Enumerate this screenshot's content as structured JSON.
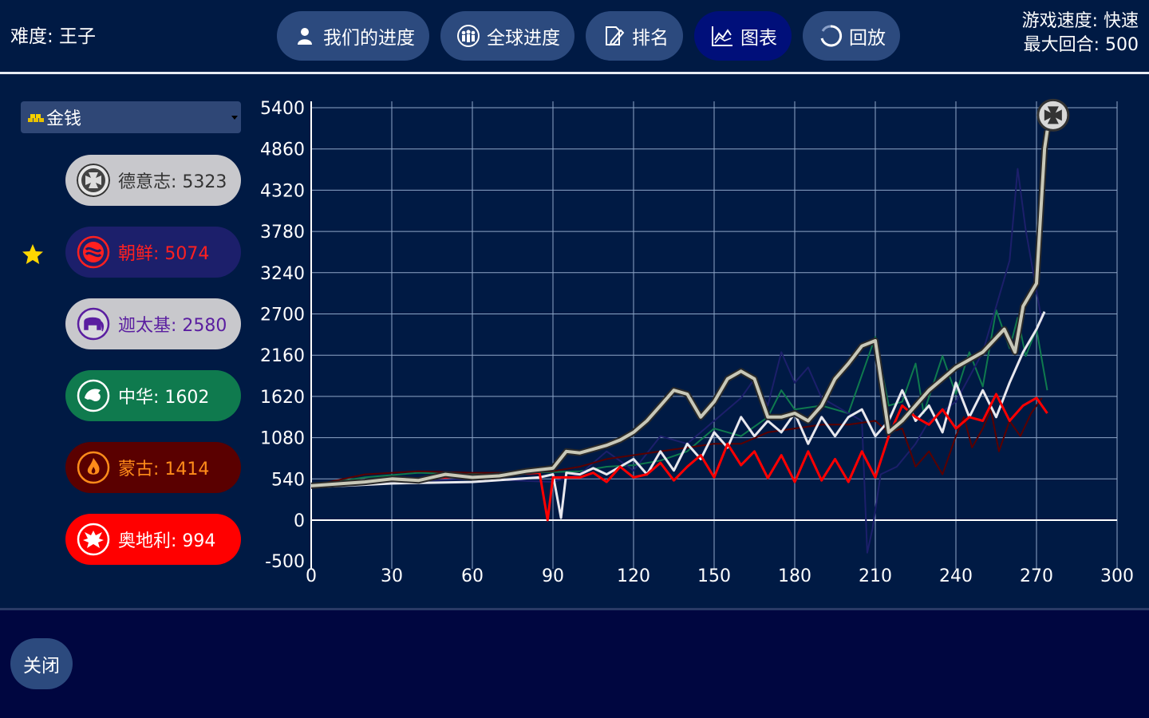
{
  "header": {
    "difficulty": "难度: 王子",
    "tabs": [
      {
        "label": "我们的进度",
        "icon": "person-icon"
      },
      {
        "label": "全球进度",
        "icon": "people-group-icon"
      },
      {
        "label": "排名",
        "icon": "edit-icon"
      },
      {
        "label": "图表",
        "icon": "chart-icon",
        "active": true
      },
      {
        "label": "回放",
        "icon": "replay-icon"
      }
    ],
    "game_speed": "游戏速度: 快速",
    "max_turns": "最大回合: 500"
  },
  "sidebar": {
    "stat_select": {
      "value": "金钱",
      "icon": "gold-icon"
    },
    "players": [
      {
        "label": "德意志: 5323",
        "bg": "#c8c8cc",
        "fg": "#333333",
        "emblem_bg": "#555555",
        "icon": "iron-cross-icon",
        "leader": true
      },
      {
        "label": "朝鲜: 5074",
        "bg": "#1c1f6b",
        "fg": "#ff2020",
        "emblem_bg": "#1c1f6b",
        "icon": "korea-emblem-icon"
      },
      {
        "label": "迦太基: 2580",
        "bg": "#c8c8cc",
        "fg": "#5a1ea0",
        "emblem_bg": "#d0d0d4",
        "icon": "elephant-icon"
      },
      {
        "label": "中华: 1602",
        "bg": "#0f7a4e",
        "fg": "#ffffff",
        "emblem_bg": "#0f7a4e",
        "icon": "dragon-icon"
      },
      {
        "label": "蒙古: 1414",
        "bg": "#5a0000",
        "fg": "#ff8c1a",
        "emblem_bg": "#5a0000",
        "icon": "flame-icon"
      },
      {
        "label": "奥地利: 994",
        "bg": "#ff0000",
        "fg": "#ffffff",
        "emblem_bg": "#ff0000",
        "icon": "eagle-icon"
      }
    ]
  },
  "chart_data": {
    "type": "line",
    "title": "",
    "xlabel": "",
    "ylabel": "",
    "xlim": [
      0,
      300
    ],
    "ylim": [
      -500,
      5400
    ],
    "xticks": [
      0,
      30,
      60,
      90,
      120,
      150,
      180,
      210,
      240,
      270,
      300
    ],
    "yticks": [
      5400,
      4860,
      4320,
      3780,
      3240,
      2700,
      2160,
      1620,
      1080,
      540,
      0,
      -500
    ],
    "grid": true,
    "series": [
      {
        "color": "#0f7a4e",
        "width": 2,
        "points": [
          [
            0,
            450
          ],
          [
            20,
            560
          ],
          [
            40,
            620
          ],
          [
            60,
            600
          ],
          [
            80,
            620
          ],
          [
            100,
            640
          ],
          [
            110,
            700
          ],
          [
            120,
            720
          ],
          [
            130,
            780
          ],
          [
            140,
            900
          ],
          [
            150,
            1200
          ],
          [
            160,
            1100
          ],
          [
            170,
            1350
          ],
          [
            175,
            1700
          ],
          [
            180,
            1450
          ],
          [
            190,
            1500
          ],
          [
            200,
            1400
          ],
          [
            205,
            1900
          ],
          [
            210,
            2400
          ],
          [
            215,
            1500
          ],
          [
            220,
            1550
          ],
          [
            225,
            2050
          ],
          [
            228,
            1400
          ],
          [
            235,
            2150
          ],
          [
            240,
            1650
          ],
          [
            245,
            2200
          ],
          [
            250,
            1750
          ],
          [
            255,
            2750
          ],
          [
            260,
            2250
          ],
          [
            263,
            2650
          ],
          [
            266,
            2150
          ],
          [
            270,
            2500
          ],
          [
            273,
            1900
          ],
          [
            274,
            1700
          ]
        ]
      },
      {
        "color": "#1c1f6b",
        "width": 2,
        "points": [
          [
            0,
            420
          ],
          [
            30,
            500
          ],
          [
            60,
            540
          ],
          [
            90,
            500
          ],
          [
            100,
            600
          ],
          [
            110,
            900
          ],
          [
            120,
            650
          ],
          [
            130,
            1100
          ],
          [
            140,
            1000
          ],
          [
            150,
            1300
          ],
          [
            160,
            1600
          ],
          [
            165,
            1850
          ],
          [
            170,
            1500
          ],
          [
            175,
            2200
          ],
          [
            180,
            1800
          ],
          [
            185,
            2000
          ],
          [
            190,
            1600
          ],
          [
            200,
            1400
          ],
          [
            205,
            1300
          ],
          [
            207,
            -400
          ],
          [
            209,
            -100
          ],
          [
            212,
            600
          ],
          [
            218,
            700
          ],
          [
            225,
            1000
          ],
          [
            230,
            1300
          ],
          [
            240,
            1550
          ],
          [
            250,
            2200
          ],
          [
            260,
            3400
          ],
          [
            263,
            4600
          ],
          [
            266,
            3800
          ],
          [
            270,
            3000
          ],
          [
            272,
            2600
          ]
        ]
      },
      {
        "color": "#5a0000",
        "width": 2,
        "points": [
          [
            0,
            450
          ],
          [
            20,
            600
          ],
          [
            40,
            640
          ],
          [
            60,
            620
          ],
          [
            80,
            620
          ],
          [
            90,
            640
          ],
          [
            100,
            700
          ],
          [
            110,
            800
          ],
          [
            130,
            900
          ],
          [
            150,
            1000
          ],
          [
            160,
            1000
          ],
          [
            170,
            1150
          ],
          [
            180,
            1200
          ],
          [
            190,
            1250
          ],
          [
            200,
            1250
          ],
          [
            210,
            1300
          ],
          [
            215,
            1150
          ],
          [
            220,
            1200
          ],
          [
            225,
            700
          ],
          [
            230,
            900
          ],
          [
            235,
            600
          ],
          [
            240,
            1100
          ],
          [
            243,
            1350
          ],
          [
            246,
            950
          ],
          [
            250,
            1200
          ],
          [
            253,
            1450
          ],
          [
            256,
            900
          ],
          [
            260,
            1300
          ],
          [
            264,
            1100
          ],
          [
            268,
            1400
          ],
          [
            272,
            1600
          ]
        ]
      },
      {
        "color": "#e8e8ee",
        "width": 3,
        "points": [
          [
            0,
            430
          ],
          [
            30,
            480
          ],
          [
            60,
            500
          ],
          [
            85,
            560
          ],
          [
            90,
            600
          ],
          [
            93,
            30
          ],
          [
            95,
            620
          ],
          [
            100,
            600
          ],
          [
            105,
            680
          ],
          [
            110,
            600
          ],
          [
            115,
            700
          ],
          [
            120,
            800
          ],
          [
            125,
            600
          ],
          [
            130,
            900
          ],
          [
            135,
            650
          ],
          [
            140,
            1000
          ],
          [
            145,
            800
          ],
          [
            150,
            1150
          ],
          [
            155,
            950
          ],
          [
            160,
            1350
          ],
          [
            165,
            1100
          ],
          [
            170,
            1300
          ],
          [
            175,
            1150
          ],
          [
            180,
            1400
          ],
          [
            185,
            1000
          ],
          [
            190,
            1350
          ],
          [
            195,
            1100
          ],
          [
            200,
            1350
          ],
          [
            205,
            1450
          ],
          [
            210,
            1100
          ],
          [
            215,
            1300
          ],
          [
            220,
            1700
          ],
          [
            225,
            1300
          ],
          [
            230,
            1500
          ],
          [
            235,
            1150
          ],
          [
            240,
            1800
          ],
          [
            245,
            1350
          ],
          [
            250,
            1700
          ],
          [
            255,
            1350
          ],
          [
            260,
            1800
          ],
          [
            265,
            2200
          ],
          [
            270,
            2500
          ],
          [
            273,
            2730
          ]
        ]
      },
      {
        "color": "#ff0000",
        "width": 3,
        "points": [
          [
            0,
            430
          ],
          [
            30,
            520
          ],
          [
            60,
            580
          ],
          [
            85,
            620
          ],
          [
            88,
            0
          ],
          [
            90,
            560
          ],
          [
            100,
            560
          ],
          [
            105,
            620
          ],
          [
            110,
            500
          ],
          [
            115,
            700
          ],
          [
            120,
            560
          ],
          [
            125,
            600
          ],
          [
            130,
            750
          ],
          [
            135,
            520
          ],
          [
            140,
            700
          ],
          [
            145,
            850
          ],
          [
            150,
            560
          ],
          [
            155,
            1000
          ],
          [
            160,
            720
          ],
          [
            165,
            900
          ],
          [
            170,
            550
          ],
          [
            175,
            850
          ],
          [
            180,
            500
          ],
          [
            185,
            900
          ],
          [
            190,
            520
          ],
          [
            195,
            800
          ],
          [
            200,
            500
          ],
          [
            205,
            900
          ],
          [
            210,
            560
          ],
          [
            215,
            1100
          ],
          [
            220,
            1500
          ],
          [
            225,
            1350
          ],
          [
            230,
            1250
          ],
          [
            235,
            1450
          ],
          [
            240,
            1200
          ],
          [
            245,
            1350
          ],
          [
            250,
            1300
          ],
          [
            255,
            1650
          ],
          [
            260,
            1300
          ],
          [
            265,
            1500
          ],
          [
            270,
            1600
          ],
          [
            274,
            1400
          ]
        ]
      },
      {
        "color": "#c8c8b8",
        "width": 4,
        "outline": "#2a2a2a",
        "points": [
          [
            0,
            450
          ],
          [
            20,
            500
          ],
          [
            30,
            540
          ],
          [
            40,
            520
          ],
          [
            50,
            600
          ],
          [
            60,
            560
          ],
          [
            70,
            580
          ],
          [
            80,
            640
          ],
          [
            90,
            680
          ],
          [
            95,
            900
          ],
          [
            100,
            880
          ],
          [
            110,
            980
          ],
          [
            115,
            1050
          ],
          [
            120,
            1150
          ],
          [
            125,
            1300
          ],
          [
            130,
            1500
          ],
          [
            135,
            1700
          ],
          [
            140,
            1650
          ],
          [
            145,
            1350
          ],
          [
            150,
            1550
          ],
          [
            155,
            1850
          ],
          [
            160,
            1950
          ],
          [
            165,
            1850
          ],
          [
            170,
            1350
          ],
          [
            175,
            1350
          ],
          [
            180,
            1400
          ],
          [
            185,
            1300
          ],
          [
            190,
            1500
          ],
          [
            195,
            1850
          ],
          [
            200,
            2050
          ],
          [
            205,
            2280
          ],
          [
            210,
            2350
          ],
          [
            215,
            1150
          ],
          [
            220,
            1300
          ],
          [
            230,
            1700
          ],
          [
            240,
            2000
          ],
          [
            250,
            2200
          ],
          [
            258,
            2500
          ],
          [
            262,
            2200
          ],
          [
            265,
            2800
          ],
          [
            270,
            3100
          ],
          [
            273,
            4860
          ],
          [
            274,
            5100
          ]
        ]
      }
    ],
    "end_marker": {
      "x": 275,
      "y": 5323,
      "icon": "iron-cross-icon"
    }
  },
  "footer": {
    "close_label": "关闭"
  }
}
